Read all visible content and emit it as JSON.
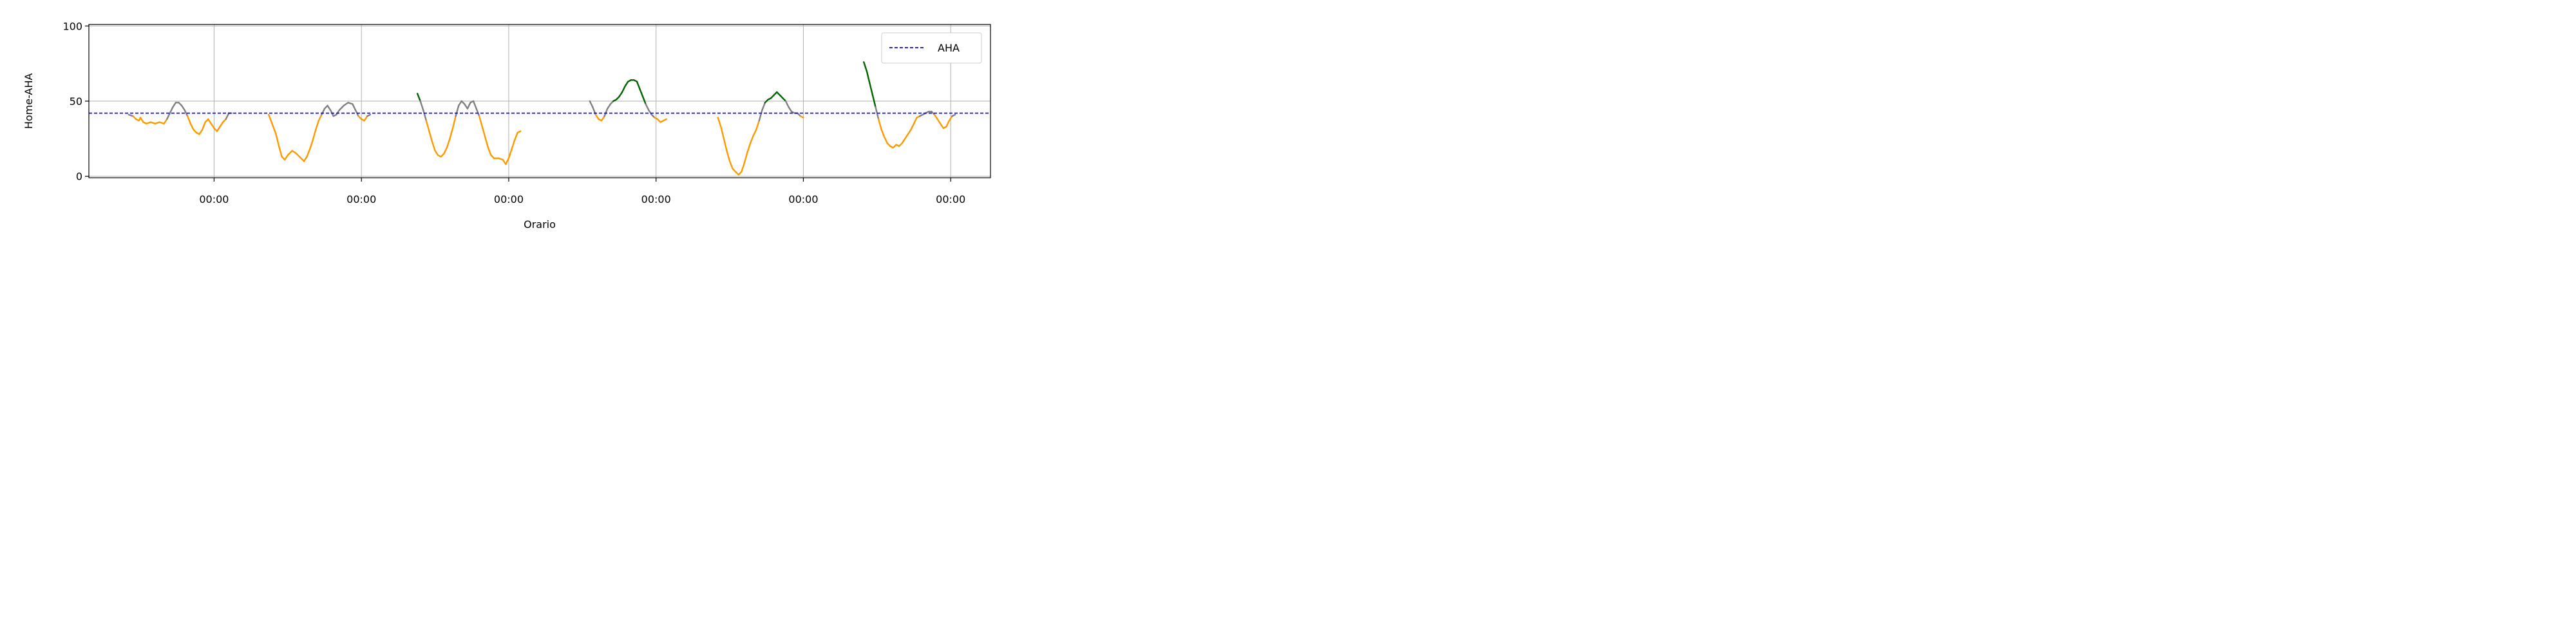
{
  "chart_data": {
    "type": "line",
    "title": "",
    "xlabel": "Orario",
    "ylabel": "Home-AHA",
    "ylim": [
      -1,
      101
    ],
    "xlim": [
      -0.85,
      5.27
    ],
    "y_ticks": [
      0,
      50,
      100
    ],
    "x_ticks": [
      {
        "x": 0,
        "label": "00:00"
      },
      {
        "x": 1,
        "label": "00:00"
      },
      {
        "x": 2,
        "label": "00:00"
      },
      {
        "x": 3,
        "label": "00:00"
      },
      {
        "x": 4,
        "label": "00:00"
      },
      {
        "x": 5,
        "label": "00:00"
      }
    ],
    "grid": true,
    "legend": {
      "placement": "top-right",
      "entries": [
        {
          "name": "AHA",
          "style": "dashed",
          "color": "#0000ff"
        }
      ]
    },
    "reference_line": {
      "name": "AHA",
      "y": 42,
      "color": "#0000ff",
      "style": "dashed"
    },
    "line_color_rule": {
      "above_50": "#006400",
      "between_40_50": "#808080",
      "below_40": "#ff9900"
    },
    "colors": {
      "high": "#006400",
      "mid": "#808080",
      "low": "#ff9900",
      "aha": "#0000ff"
    },
    "series": [
      {
        "points": [
          [
            -0.58,
            41
          ],
          [
            -0.55,
            40
          ],
          [
            -0.53,
            38
          ],
          [
            -0.51,
            37
          ],
          [
            -0.5,
            39
          ],
          [
            -0.48,
            36
          ],
          [
            -0.46,
            35
          ],
          [
            -0.43,
            36
          ],
          [
            -0.4,
            35
          ],
          [
            -0.37,
            36
          ],
          [
            -0.34,
            35
          ],
          [
            -0.32,
            38
          ],
          [
            -0.3,
            42
          ],
          [
            -0.28,
            46
          ],
          [
            -0.26,
            49
          ],
          [
            -0.24,
            49
          ],
          [
            -0.22,
            47
          ],
          [
            -0.2,
            44
          ],
          [
            -0.18,
            40
          ],
          [
            -0.16,
            35
          ],
          [
            -0.14,
            31
          ],
          [
            -0.12,
            29
          ],
          [
            -0.1,
            28
          ],
          [
            -0.08,
            31
          ],
          [
            -0.06,
            36
          ],
          [
            -0.04,
            38
          ],
          [
            -0.02,
            35
          ],
          [
            0,
            32
          ],
          [
            0.02,
            30
          ],
          [
            0.04,
            33
          ],
          [
            0.06,
            36
          ],
          [
            0.08,
            38
          ],
          [
            0.1,
            42
          ],
          [
            0.12,
            42
          ]
        ]
      },
      {
        "points": [
          [
            0.37,
            41
          ],
          [
            0.39,
            36
          ],
          [
            0.42,
            28
          ],
          [
            0.44,
            20
          ],
          [
            0.46,
            13
          ],
          [
            0.48,
            11
          ],
          [
            0.5,
            14
          ],
          [
            0.53,
            17
          ],
          [
            0.56,
            15
          ],
          [
            0.59,
            12
          ],
          [
            0.61,
            10
          ],
          [
            0.63,
            13
          ],
          [
            0.65,
            18
          ],
          [
            0.67,
            24
          ],
          [
            0.69,
            31
          ],
          [
            0.71,
            37
          ],
          [
            0.73,
            41
          ],
          [
            0.75,
            45
          ],
          [
            0.77,
            47
          ],
          [
            0.79,
            44
          ],
          [
            0.81,
            40
          ],
          [
            0.83,
            41
          ],
          [
            0.85,
            44
          ],
          [
            0.88,
            47
          ],
          [
            0.91,
            49
          ],
          [
            0.94,
            48
          ],
          [
            0.96,
            44
          ],
          [
            0.98,
            40
          ],
          [
            1,
            38
          ],
          [
            1.02,
            37
          ],
          [
            1.04,
            40
          ],
          [
            1.06,
            41
          ]
        ]
      },
      {
        "points": [
          [
            1.38,
            55
          ],
          [
            1.4,
            50
          ],
          [
            1.42,
            44
          ],
          [
            1.44,
            37
          ],
          [
            1.46,
            30
          ],
          [
            1.48,
            23
          ],
          [
            1.5,
            17
          ],
          [
            1.52,
            14
          ],
          [
            1.54,
            13
          ],
          [
            1.56,
            15
          ],
          [
            1.58,
            19
          ],
          [
            1.6,
            25
          ],
          [
            1.62,
            32
          ],
          [
            1.64,
            40
          ],
          [
            1.66,
            47
          ],
          [
            1.68,
            50
          ],
          [
            1.7,
            48
          ],
          [
            1.72,
            45
          ],
          [
            1.74,
            49
          ],
          [
            1.76,
            50
          ],
          [
            1.78,
            45
          ],
          [
            1.8,
            40
          ],
          [
            1.82,
            33
          ],
          [
            1.84,
            26
          ],
          [
            1.86,
            19
          ],
          [
            1.88,
            14
          ],
          [
            1.9,
            12
          ],
          [
            1.93,
            12
          ],
          [
            1.96,
            11
          ],
          [
            1.98,
            8
          ],
          [
            2,
            12
          ],
          [
            2.02,
            18
          ],
          [
            2.04,
            24
          ],
          [
            2.06,
            29
          ],
          [
            2.08,
            30
          ]
        ]
      },
      {
        "points": [
          [
            2.55,
            50
          ],
          [
            2.57,
            46
          ],
          [
            2.59,
            41
          ],
          [
            2.61,
            38
          ],
          [
            2.63,
            37
          ],
          [
            2.65,
            40
          ],
          [
            2.67,
            45
          ],
          [
            2.69,
            48
          ],
          [
            2.71,
            50
          ],
          [
            2.73,
            51
          ],
          [
            2.75,
            53
          ],
          [
            2.77,
            56
          ],
          [
            2.79,
            60
          ],
          [
            2.81,
            63
          ],
          [
            2.83,
            64
          ],
          [
            2.85,
            64
          ],
          [
            2.87,
            63
          ],
          [
            2.89,
            58
          ],
          [
            2.91,
            53
          ],
          [
            2.93,
            48
          ],
          [
            2.95,
            44
          ],
          [
            2.97,
            41
          ],
          [
            2.99,
            39
          ],
          [
            3.01,
            38
          ],
          [
            3.03,
            36
          ],
          [
            3.05,
            37
          ],
          [
            3.07,
            38
          ]
        ]
      },
      {
        "points": [
          [
            3.42,
            39
          ],
          [
            3.44,
            33
          ],
          [
            3.46,
            25
          ],
          [
            3.48,
            17
          ],
          [
            3.5,
            10
          ],
          [
            3.52,
            5
          ],
          [
            3.54,
            3
          ],
          [
            3.56,
            1
          ],
          [
            3.58,
            3
          ],
          [
            3.6,
            9
          ],
          [
            3.62,
            16
          ],
          [
            3.64,
            22
          ],
          [
            3.66,
            27
          ],
          [
            3.68,
            31
          ],
          [
            3.7,
            37
          ],
          [
            3.72,
            44
          ],
          [
            3.74,
            49
          ],
          [
            3.76,
            51
          ],
          [
            3.78,
            52
          ],
          [
            3.8,
            54
          ],
          [
            3.82,
            56
          ],
          [
            3.84,
            54
          ],
          [
            3.86,
            52
          ],
          [
            3.88,
            50
          ],
          [
            3.9,
            46
          ],
          [
            3.92,
            43
          ],
          [
            3.94,
            42
          ],
          [
            3.96,
            42
          ],
          [
            3.98,
            40
          ],
          [
            4,
            39
          ]
        ]
      },
      {
        "points": [
          [
            4.41,
            76
          ],
          [
            4.43,
            70
          ],
          [
            4.45,
            62
          ],
          [
            4.47,
            54
          ],
          [
            4.49,
            46
          ],
          [
            4.51,
            38
          ],
          [
            4.53,
            31
          ],
          [
            4.55,
            26
          ],
          [
            4.57,
            22
          ],
          [
            4.59,
            20
          ],
          [
            4.61,
            19
          ],
          [
            4.63,
            21
          ],
          [
            4.65,
            20
          ],
          [
            4.67,
            22
          ],
          [
            4.69,
            25
          ],
          [
            4.71,
            28
          ],
          [
            4.73,
            31
          ],
          [
            4.75,
            35
          ],
          [
            4.77,
            39
          ],
          [
            4.79,
            40
          ],
          [
            4.81,
            41
          ],
          [
            4.83,
            42
          ],
          [
            4.85,
            43
          ],
          [
            4.87,
            43
          ],
          [
            4.89,
            41
          ],
          [
            4.91,
            38
          ],
          [
            4.93,
            35
          ],
          [
            4.95,
            32
          ],
          [
            4.97,
            33
          ],
          [
            4.99,
            37
          ],
          [
            5.01,
            40
          ],
          [
            5.03,
            41
          ]
        ]
      }
    ]
  }
}
